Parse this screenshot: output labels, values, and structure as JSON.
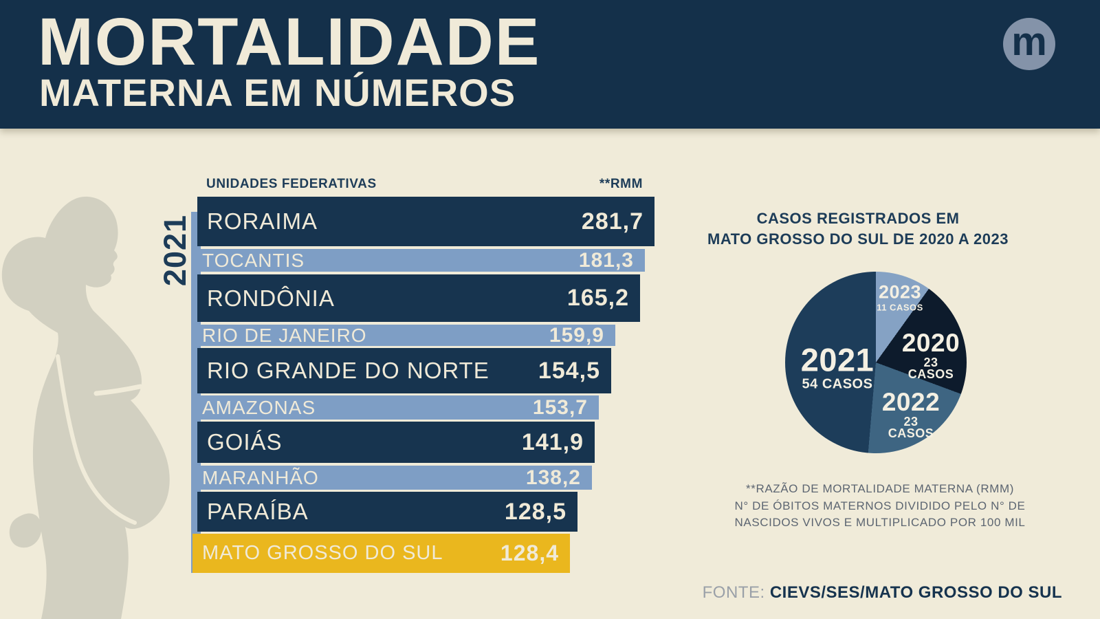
{
  "header": {
    "title": "MORTALIDADE",
    "subtitle": "MATERNA EM NÚMEROS",
    "logo_letter": "m"
  },
  "bar_section": {
    "column_left": "UNIDADES FEDERATIVAS",
    "column_right": "**RMM",
    "year": "2021",
    "rows": [
      {
        "label": "RORAIMA",
        "value": "281,7",
        "tone": "dark"
      },
      {
        "label": "TOCANTIS",
        "value": "181,3",
        "tone": "light"
      },
      {
        "label": "RONDÔNIA",
        "value": "165,2",
        "tone": "dark"
      },
      {
        "label": "RIO DE JANEIRO",
        "value": "159,9",
        "tone": "light"
      },
      {
        "label": "RIO GRANDE DO NORTE",
        "value": "154,5",
        "tone": "dark"
      },
      {
        "label": "AMAZONAS",
        "value": "153,7",
        "tone": "light"
      },
      {
        "label": "GOIÁS",
        "value": "141,9",
        "tone": "dark"
      },
      {
        "label": "MARANHÃO",
        "value": "138,2",
        "tone": "light"
      },
      {
        "label": "PARAÍBA",
        "value": "128,5",
        "tone": "dark"
      },
      {
        "label": "MATO GROSSO DO SUL",
        "value": "128,4",
        "tone": "gold"
      }
    ]
  },
  "pie_section": {
    "title_line1": "CASOS REGISTRADOS EM",
    "title_line2": "MATO GROSSO DO SUL DE 2020 A 2023",
    "slices": [
      {
        "year": "2023",
        "cases": "11 CASOS",
        "pos": "s2023"
      },
      {
        "year": "2020",
        "cases": "23 CASOS",
        "pos": "s2020"
      },
      {
        "year": "2022",
        "cases": "23 CASOS",
        "pos": "s2022"
      },
      {
        "year": "2021",
        "cases": "54 CASOS",
        "pos": "s2021"
      }
    ]
  },
  "footnote": {
    "line1": "**RAZÃO DE MORTALIDADE MATERNA (RMM)",
    "line2": "N° DE ÓBITOS MATERNOS DIVIDIDO PELO N° DE",
    "line3": "NASCIDOS VIVOS E MULTIPLICADO POR 100 MIL"
  },
  "source": {
    "label": "FONTE: ",
    "value": "CIEVS/SES/MATO GROSSO DO SUL"
  },
  "colors": {
    "background": "#f0ebd9",
    "header_navy": "#14304a",
    "bar_dark": "#17344f",
    "bar_light": "#7e9ec5",
    "bar_highlight_gold": "#eab71e",
    "cream_text": "#f0ead8",
    "pie_2021": "#1d3d5a",
    "pie_2020": "#0d1b2c",
    "pie_2022": "#3e6582",
    "pie_2023": "#85a2c4",
    "silhouette_gray": "#d2d0c1"
  },
  "chart_data": [
    {
      "type": "bar",
      "orientation": "horizontal",
      "title": "UNIDADES FEDERATIVAS — **RMM",
      "year": "2021",
      "categories": [
        "RORAIMA",
        "TOCANTIS",
        "RONDÔNIA",
        "RIO DE JANEIRO",
        "RIO GRANDE DO NORTE",
        "AMAZONAS",
        "GOIÁS",
        "MARANHÃO",
        "PARAÍBA",
        "MATO GROSSO DO SUL"
      ],
      "values": [
        281.7,
        181.3,
        165.2,
        159.9,
        154.5,
        153.7,
        141.9,
        138.2,
        128.5,
        128.4
      ],
      "value_format": "decimal-comma",
      "highlight_category": "MATO GROSSO DO SUL",
      "ylabel": "UNIDADES FEDERATIVAS",
      "xlabel": "**RMM"
    },
    {
      "type": "pie",
      "title": "CASOS REGISTRADOS EM MATO GROSSO DO SUL DE 2020 A 2023",
      "categories": [
        "2023",
        "2020",
        "2022",
        "2021"
      ],
      "values": [
        11,
        23,
        23,
        54
      ],
      "unit": "CASOS",
      "start_angle_deg": 0,
      "direction": "clockwise"
    }
  ]
}
